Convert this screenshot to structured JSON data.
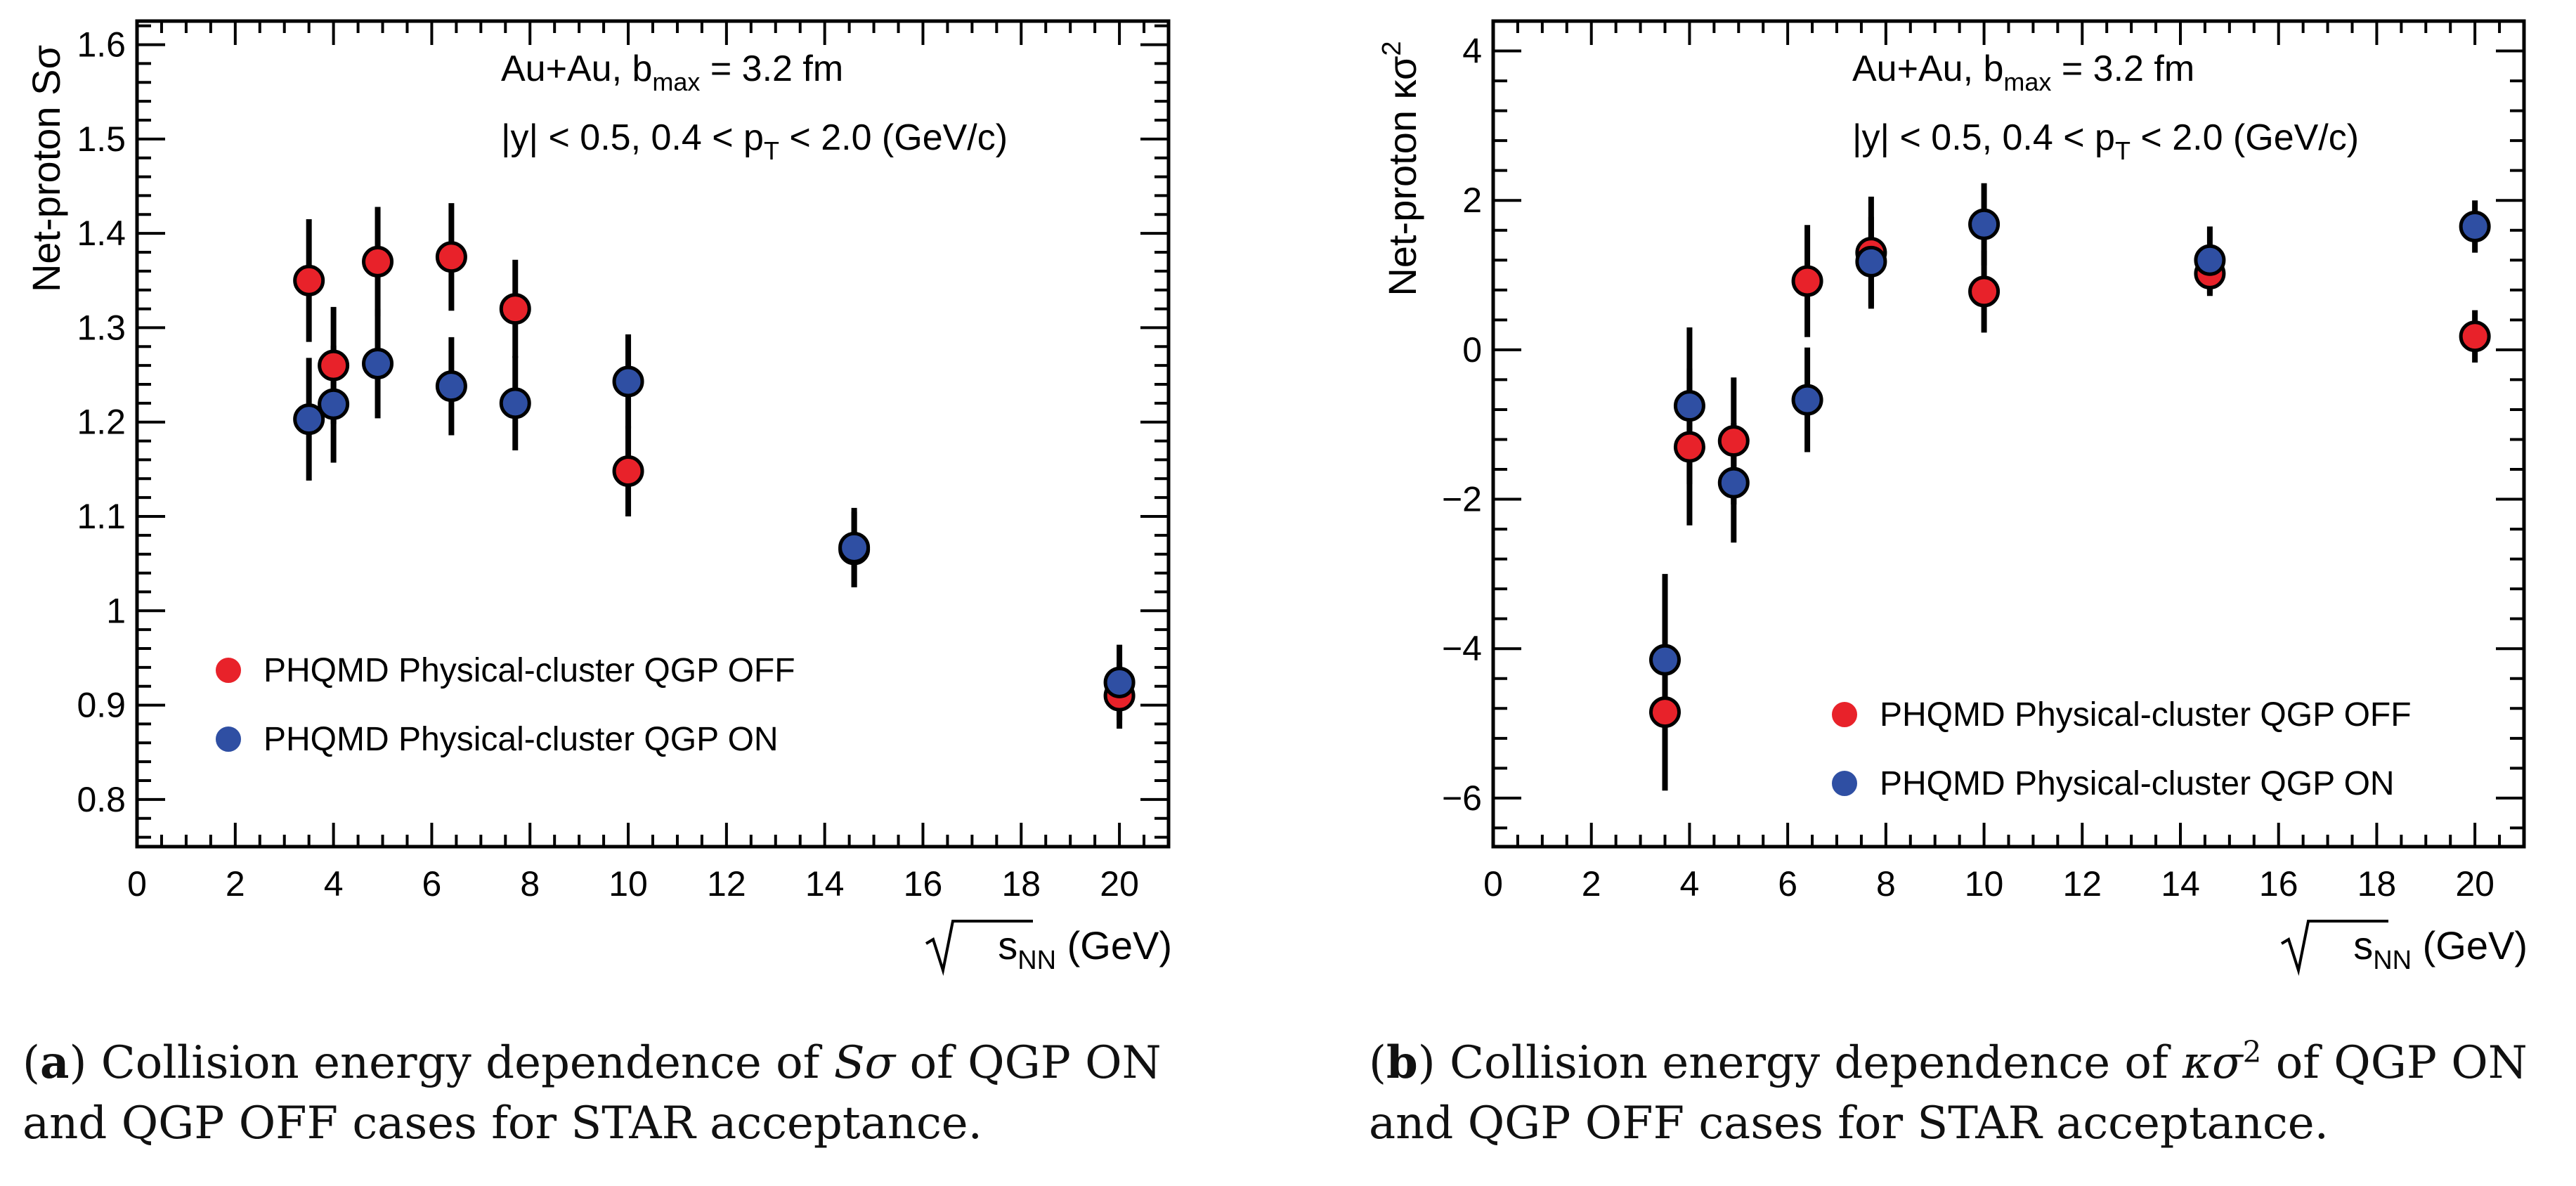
{
  "colors": {
    "off": "#e8222a",
    "on": "#2f4fa3",
    "axis": "#000000"
  },
  "chart_data": [
    {
      "type": "scatter",
      "panel": "a",
      "ylabel_prefix": "Net-proton ",
      "ylabel_symbol": "Sσ",
      "xlabel_sqrt": "s",
      "xlabel_sub": "NN",
      "xlabel_unit": "(GeV)",
      "xlim": [
        0,
        21
      ],
      "ylim": [
        0.75,
        1.625
      ],
      "xticks": [
        0,
        2,
        4,
        6,
        8,
        10,
        12,
        14,
        16,
        18,
        20
      ],
      "xtick_labels": [
        "0",
        "2",
        "4",
        "6",
        "8",
        "10",
        "12",
        "14",
        "16",
        "18",
        "20"
      ],
      "yticks": [
        0.8,
        0.9,
        1.0,
        1.1,
        1.2,
        1.3,
        1.4,
        1.5,
        1.6
      ],
      "ytick_labels": [
        "0.8",
        "0.9",
        "1",
        "1.1",
        "1.2",
        "1.3",
        "1.4",
        "1.5",
        "1.6"
      ],
      "annotation_line1": "Au+Au, b",
      "annotation_line1_sub": "max",
      "annotation_line1_end": " = 3.2 fm",
      "annotation_line2": "|y| < 0.5, 0.4 < p",
      "annotation_line2_sub": "T",
      "annotation_line2_end": " < 2.0 (GeV/c)",
      "legend_position": "bottom-left",
      "series": [
        {
          "name": "PHQMD Physical-cluster QGP OFF",
          "color": "off",
          "x": [
            3.5,
            4.0,
            4.9,
            6.4,
            7.7,
            10.0,
            14.6,
            20.0
          ],
          "y": [
            1.35,
            1.26,
            1.37,
            1.375,
            1.32,
            1.148,
            1.065,
            0.91
          ],
          "yerr": [
            0.065,
            0.062,
            0.058,
            0.057,
            0.052,
            0.048,
            0.04,
            0.035
          ]
        },
        {
          "name": "PHQMD Physical-cluster QGP ON",
          "color": "on",
          "x": [
            3.5,
            4.0,
            4.9,
            6.4,
            7.7,
            10.0,
            14.6,
            20.0
          ],
          "y": [
            1.203,
            1.219,
            1.262,
            1.238,
            1.22,
            1.243,
            1.067,
            0.924
          ],
          "yerr": [
            0.065,
            0.062,
            0.058,
            0.052,
            0.05,
            0.05,
            0.042,
            0.04
          ]
        }
      ]
    },
    {
      "type": "scatter",
      "panel": "b",
      "ylabel_prefix": "Net-proton ",
      "ylabel_symbol": "κσ",
      "ylabel_sup": "2",
      "xlabel_sqrt": "s",
      "xlabel_sub": "NN",
      "xlabel_unit": "(GeV)",
      "xlim": [
        0,
        21
      ],
      "ylim": [
        -6.65,
        4.4
      ],
      "xticks": [
        0,
        2,
        4,
        6,
        8,
        10,
        12,
        14,
        16,
        18,
        20
      ],
      "xtick_labels": [
        "0",
        "2",
        "4",
        "6",
        "8",
        "10",
        "12",
        "14",
        "16",
        "18",
        "20"
      ],
      "yticks": [
        -6,
        -4,
        -2,
        0,
        2,
        4
      ],
      "ytick_labels": [
        "−6",
        "−4",
        "−2",
        "0",
        "2",
        "4"
      ],
      "annotation_line1": "Au+Au, b",
      "annotation_line1_sub": "max",
      "annotation_line1_end": " = 3.2 fm",
      "annotation_line2": "|y| < 0.5, 0.4 < p",
      "annotation_line2_sub": "T",
      "annotation_line2_end": " < 2.0 (GeV/c)",
      "legend_position": "bottom-right",
      "series": [
        {
          "name": "PHQMD Physical-cluster QGP OFF",
          "color": "off",
          "x": [
            3.5,
            4.0,
            4.9,
            6.4,
            7.7,
            10.0,
            14.6,
            20.0
          ],
          "y": [
            -4.85,
            -1.3,
            -1.22,
            0.92,
            1.3,
            0.78,
            1.02,
            0.18
          ],
          "yerr": [
            1.05,
            1.05,
            0.85,
            0.75,
            0.75,
            0.55,
            0.3,
            0.35
          ]
        },
        {
          "name": "PHQMD Physical-cluster QGP ON",
          "color": "on",
          "x": [
            3.5,
            4.0,
            4.9,
            6.4,
            7.7,
            10.0,
            14.6,
            20.0
          ],
          "y": [
            -4.15,
            -0.75,
            -1.78,
            -0.67,
            1.18,
            1.68,
            1.2,
            1.65
          ],
          "yerr": [
            1.15,
            1.05,
            0.8,
            0.7,
            0.6,
            0.55,
            0.45,
            0.35
          ]
        }
      ]
    }
  ],
  "captions": {
    "a": {
      "label": "a",
      "line1_prefix": "Collision energy dependence of ",
      "symbol": "Sσ",
      "line1_suffix": " of QGP ON",
      "line2": "and QGP OFF cases for STAR acceptance."
    },
    "b": {
      "label": "b",
      "line1_prefix": "Collision energy dependence of ",
      "symbol": "κσ",
      "symbol_sup": "2",
      "line1_suffix": " of QGP ON",
      "line2": "and QGP OFF cases for STAR acceptance."
    }
  }
}
